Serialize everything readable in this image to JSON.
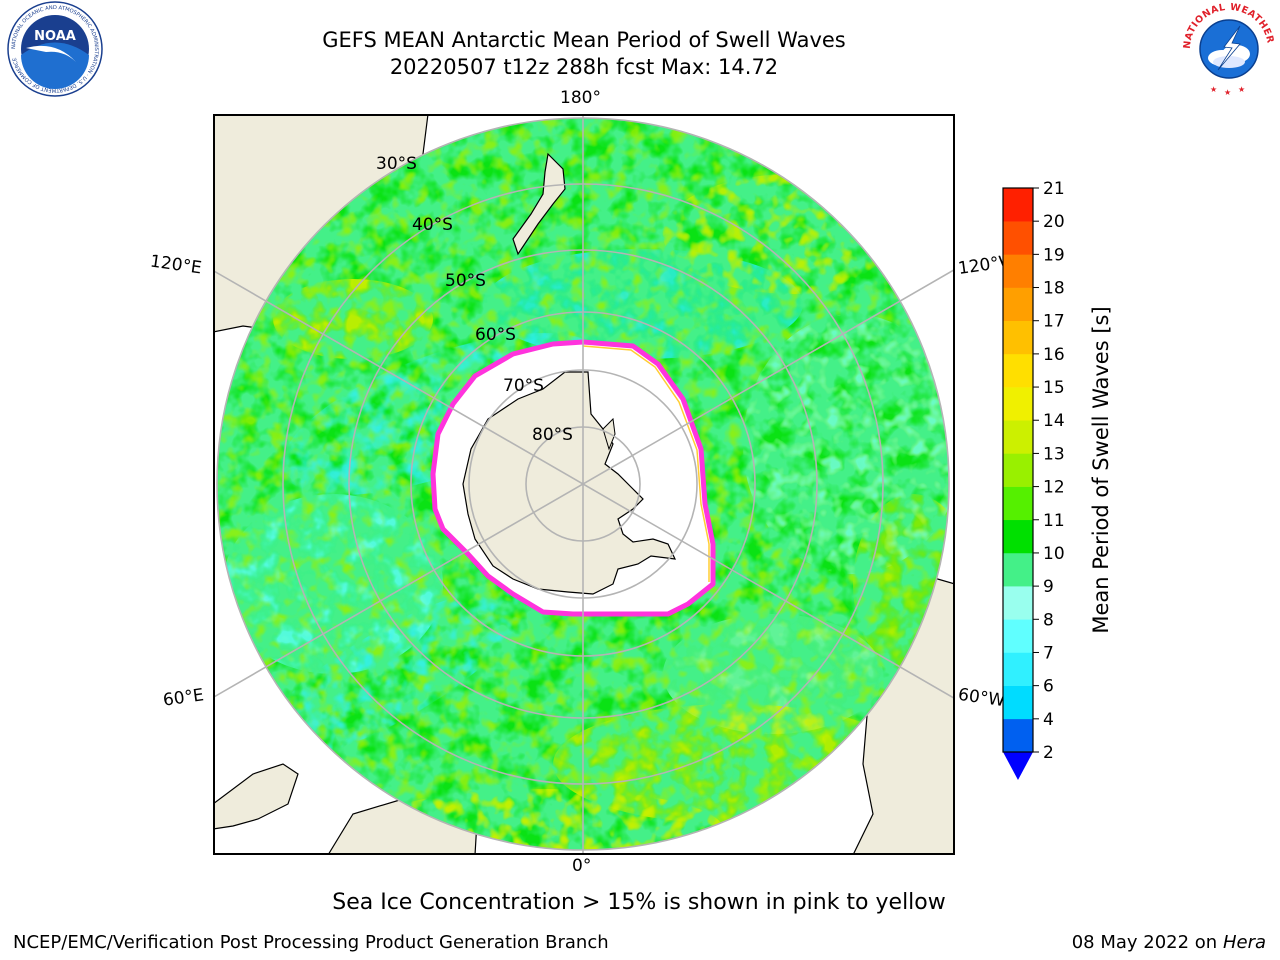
{
  "title_line1": "GEFS MEAN Antarctic Mean Period of Swell Waves",
  "title_line2": "20220507 t12z 288h fcst   Max: 14.72",
  "logos": {
    "left": {
      "text": "NOAA",
      "ring_text": "NATIONAL OCEANIC AND ATMOSPHERIC ADMINISTRATION · U.S. DEPARTMENT OF COMMERCE"
    },
    "right": {
      "ring_text": "NATIONAL WEATHER SERVICE"
    }
  },
  "map": {
    "lon_labels": {
      "top": "180°",
      "bottom": "0°",
      "upper_left": "120°E",
      "upper_right": "120°W",
      "lower_left": "60°E",
      "lower_right": "60°W"
    },
    "lat_labels": [
      "30°S",
      "40°S",
      "50°S",
      "60°S",
      "70°S",
      "80°S"
    ],
    "colors": {
      "land": "#efecdc",
      "ice": "#ffffff",
      "ice_edge": "#ff33dd",
      "grid": "#b4b4b4"
    }
  },
  "colorbar": {
    "label": "Mean Period of Swell Waves [s]",
    "ticks": [
      "2",
      "4",
      "6",
      "7",
      "8",
      "9",
      "10",
      "11",
      "12",
      "13",
      "14",
      "15",
      "16",
      "17",
      "18",
      "19",
      "20",
      "21"
    ],
    "colors": [
      "#0060f0",
      "#00dcff",
      "#30f0ff",
      "#60ffff",
      "#99ffee",
      "#44f088",
      "#00e000",
      "#55f000",
      "#99f000",
      "#ccf000",
      "#f0f000",
      "#ffdf00",
      "#ffc000",
      "#ff9f00",
      "#ff7f00",
      "#ff5000",
      "#ff2000"
    ],
    "under_color": "#0000ff"
  },
  "footnote": "Sea Ice Concentration > 15% is shown in pink to yellow",
  "credit": "NCEP/EMC/Verification Post Processing Product Generation Branch",
  "date": {
    "text": "08 May 2022 on",
    "host": "Hera"
  }
}
